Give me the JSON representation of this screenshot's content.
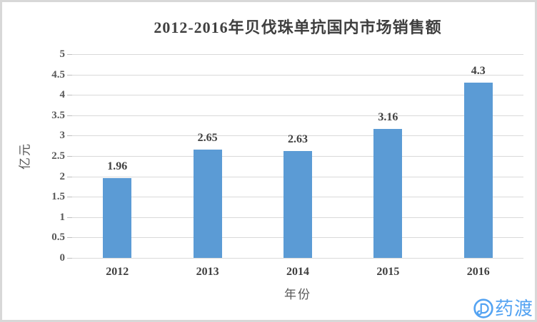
{
  "chart_data": {
    "type": "bar",
    "title": "2012-2016年贝伐珠单抗国内市场销售额",
    "categories": [
      "2012",
      "2013",
      "2014",
      "2015",
      "2016"
    ],
    "values": [
      1.96,
      2.65,
      2.63,
      3.16,
      4.3
    ],
    "value_labels": [
      "1.96",
      "2.65",
      "2.63",
      "3.16",
      "4.3"
    ],
    "xlabel": "年份",
    "ylabel": "亿元",
    "ylim": [
      0,
      5
    ],
    "ytick_step": 0.5,
    "yticks": [
      "0",
      "0.5",
      "1",
      "1.5",
      "2",
      "2.5",
      "3",
      "3.5",
      "4",
      "4.5",
      "5"
    ],
    "grid": true,
    "legend": "none",
    "bar_color": "#5B9BD5"
  },
  "colors": {
    "bar": "#5B9BD5",
    "gridline": "#D9D9D9",
    "tickmark": "#BFBFBF",
    "title_text": "#3F3F3F",
    "label_text": "#404040",
    "axis_text": "#595959",
    "frame_border": "#D8D8D8",
    "logo_blue": "#54A3F2",
    "background": "#FFFFFF"
  },
  "logo": {
    "text": "药渡",
    "icon": "pharmacodia-d-icon"
  }
}
